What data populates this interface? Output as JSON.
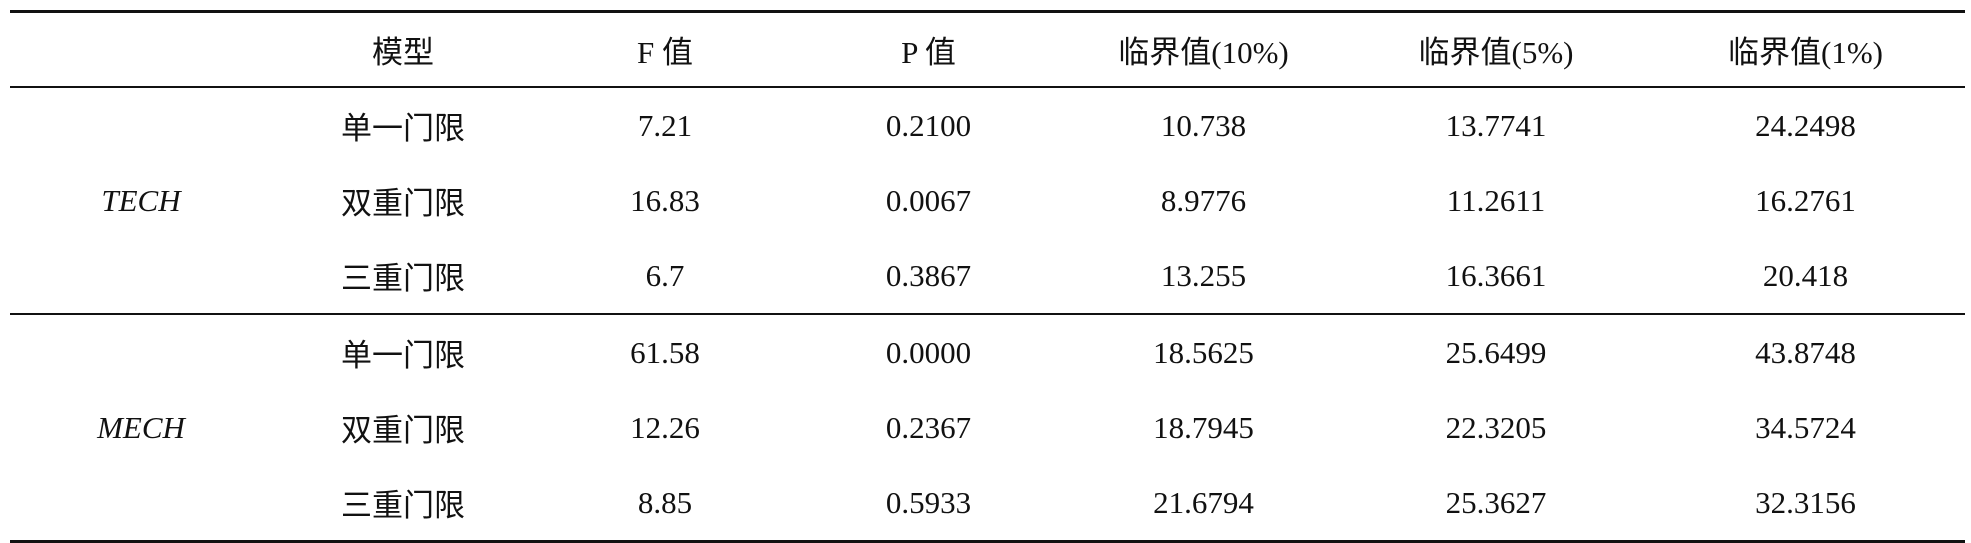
{
  "table": {
    "header": [
      "模型",
      "F 值",
      "P 值",
      "临界值(10%)",
      "临界值(5%)",
      "临界值(1%)"
    ],
    "groups": [
      {
        "label": "TECH",
        "rows": [
          [
            "单一门限",
            "7.21",
            "0.2100",
            "10.738",
            "13.7741",
            "24.2498"
          ],
          [
            "双重门限",
            "16.83",
            "0.0067",
            "8.9776",
            "11.2611",
            "16.2761"
          ],
          [
            "三重门限",
            "6.7",
            "0.3867",
            "13.255",
            "16.3661",
            "20.418"
          ]
        ]
      },
      {
        "label": "MECH",
        "rows": [
          [
            "单一门限",
            "61.58",
            "0.0000",
            "18.5625",
            "25.6499",
            "43.8748"
          ],
          [
            "双重门限",
            "12.26",
            "0.2367",
            "18.7945",
            "22.3205",
            "34.5724"
          ],
          [
            "三重门限",
            "8.85",
            "0.5933",
            "21.6794",
            "25.3627",
            "32.3156"
          ]
        ]
      }
    ]
  }
}
